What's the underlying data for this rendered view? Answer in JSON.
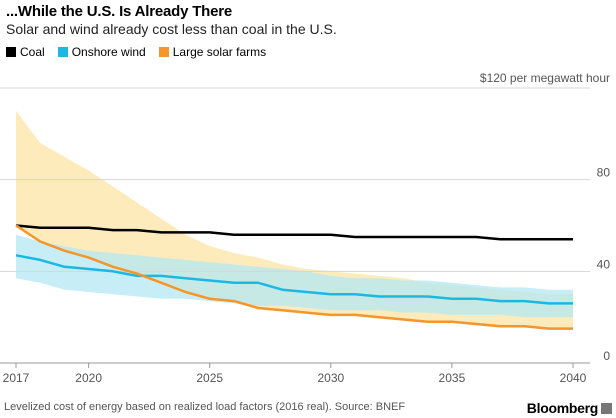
{
  "header": {
    "title": "...While the U.S. Is Already There",
    "subtitle": "Solar and wind already cost less than coal in the U.S."
  },
  "legend": [
    {
      "label": "Coal",
      "color": "#000000"
    },
    {
      "label": "Onshore wind",
      "color": "#1bb8e3"
    },
    {
      "label": "Large solar farms",
      "color": "#f5952a"
    }
  ],
  "footer": {
    "note": "Levelized cost of energy based on realized load factors (2016 real). Source: BNEF",
    "brand": "Bloomberg"
  },
  "chart_data": {
    "type": "line",
    "title": "...While the U.S. Is Already There",
    "subtitle": "Solar and wind already cost less than coal in the U.S.",
    "unit_label": "$120 per megawatt hour",
    "xlabel": "",
    "ylabel": "",
    "xlim": [
      2017,
      2040
    ],
    "ylim": [
      0,
      120
    ],
    "x_ticks": [
      2017,
      2020,
      2025,
      2030,
      2035,
      2040
    ],
    "y_ticks": [
      0,
      40,
      80
    ],
    "grid": true,
    "legend_position": "top-left",
    "x": [
      2017,
      2018,
      2019,
      2020,
      2021,
      2022,
      2023,
      2024,
      2025,
      2026,
      2027,
      2028,
      2029,
      2030,
      2031,
      2032,
      2033,
      2034,
      2035,
      2036,
      2037,
      2038,
      2039,
      2040
    ],
    "series": [
      {
        "name": "Coal",
        "color": "#000000",
        "values": [
          60,
          59,
          59,
          59,
          58,
          58,
          57,
          57,
          57,
          56,
          56,
          56,
          56,
          56,
          55,
          55,
          55,
          55,
          55,
          55,
          54,
          54,
          54,
          54
        ]
      },
      {
        "name": "Onshore wind",
        "color": "#1bb8e3",
        "values": [
          47,
          45,
          42,
          41,
          40,
          38,
          38,
          37,
          36,
          35,
          35,
          32,
          31,
          30,
          30,
          29,
          29,
          29,
          28,
          28,
          27,
          27,
          26,
          26
        ]
      },
      {
        "name": "Large solar farms",
        "color": "#f5952a",
        "values": [
          60,
          53,
          49,
          46,
          42,
          39,
          35,
          31,
          28,
          27,
          24,
          23,
          22,
          21,
          21,
          20,
          19,
          18,
          18,
          17,
          16,
          16,
          15,
          15
        ]
      }
    ],
    "bands": [
      {
        "series": "Large solar farms",
        "color": "#fde4a6",
        "upper": [
          110,
          96,
          90,
          84,
          77,
          70,
          63,
          56,
          51,
          48,
          46,
          43,
          41,
          40,
          39,
          38,
          37,
          35,
          34,
          33,
          32,
          31,
          30,
          30
        ],
        "lower": [
          60,
          53,
          49,
          46,
          42,
          39,
          35,
          31,
          28,
          27,
          24,
          23,
          22,
          21,
          21,
          20,
          19,
          18,
          18,
          17,
          16,
          16,
          15,
          15
        ]
      },
      {
        "series": "Onshore wind",
        "color": "#b4e8f4",
        "upper": [
          56,
          53,
          51,
          49,
          48,
          47,
          46,
          45,
          44,
          43,
          42,
          41,
          40,
          38,
          37,
          37,
          36,
          36,
          35,
          34,
          33,
          33,
          32,
          32
        ],
        "lower": [
          37,
          35,
          32,
          31,
          30,
          29,
          28,
          28,
          27,
          26,
          25,
          25,
          24,
          23,
          23,
          23,
          22,
          22,
          21,
          21,
          21,
          20,
          20,
          20
        ]
      }
    ]
  }
}
